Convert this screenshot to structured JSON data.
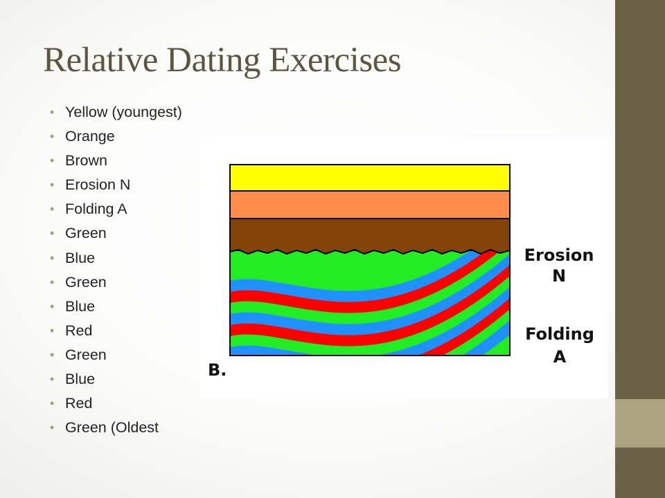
{
  "slide": {
    "title": "Relative Dating Exercises",
    "bullets": [
      "Yellow (youngest)",
      "Orange",
      "Brown",
      "Erosion N",
      "Folding A",
      "Green",
      "Blue",
      "Green",
      "Blue",
      "Red",
      "Green",
      "Blue",
      "Red",
      "Green (Oldest"
    ]
  },
  "diagram": {
    "label_erosion_1": "Erosion",
    "label_erosion_2": "N",
    "label_folding_1": "Folding",
    "label_folding_2": "A",
    "figure_label": "B.",
    "colors": {
      "yellow": "#ffff00",
      "orange": "#ff8c4a",
      "brown": "#844409",
      "green": "#22ec22",
      "blue": "#1e90ff",
      "red": "#ff0000"
    }
  },
  "theme": {
    "sidebar": "#6b6149",
    "sidebar_accent": "#aba57f",
    "title_color": "#5b5541"
  }
}
